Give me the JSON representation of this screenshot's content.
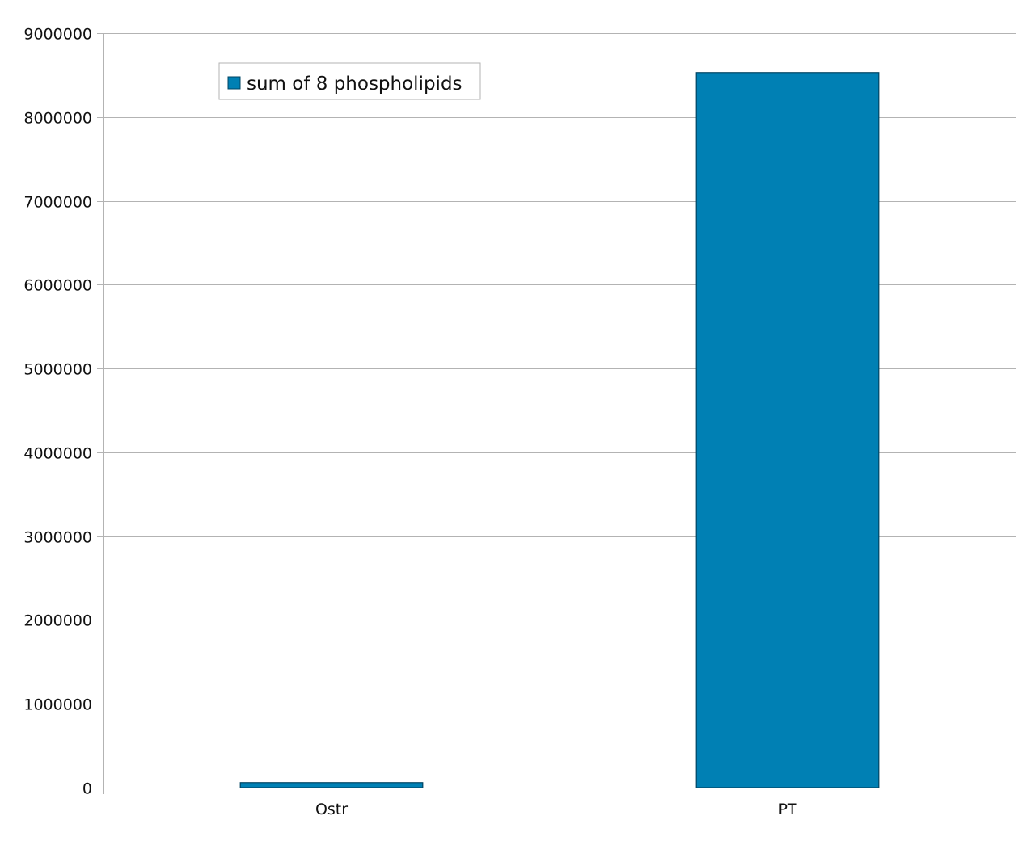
{
  "chart_data": {
    "type": "bar",
    "categories": [
      "Ostr",
      "PT"
    ],
    "series": [
      {
        "name": "sum of 8 phospholipids",
        "values": [
          60000,
          8530000
        ],
        "color": "#0080b4"
      }
    ],
    "ylim": [
      0,
      9000000
    ],
    "yticks": [
      0,
      1000000,
      2000000,
      3000000,
      4000000,
      5000000,
      6000000,
      7000000,
      8000000,
      9000000
    ],
    "ytick_labels": [
      "0",
      "1000000",
      "2000000",
      "3000000",
      "4000000",
      "5000000",
      "6000000",
      "7000000",
      "8000000",
      "9000000"
    ],
    "grid": true,
    "legend_position": "top-left",
    "gridline_color": "#b3b3b3",
    "bar_border_color": "#004563"
  }
}
